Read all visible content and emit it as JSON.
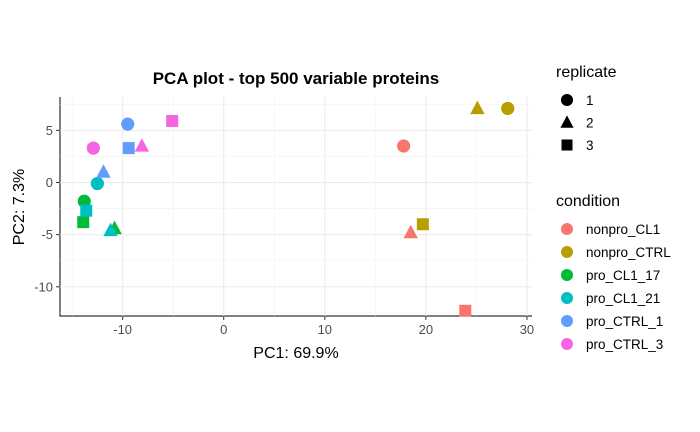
{
  "chart_data": {
    "type": "scatter",
    "title": "PCA plot - top 500 variable proteins",
    "xlabel": "PC1: 69.9%",
    "ylabel": "PC2: 7.3%",
    "xlim": [
      -16.2,
      30.5
    ],
    "ylim": [
      -12.8,
      8.2
    ],
    "xticks": [
      -10,
      0,
      10,
      20,
      30
    ],
    "yticks": [
      -10,
      -5,
      0,
      5
    ],
    "grid": true,
    "legend_position": "right",
    "legends": {
      "replicate": {
        "title": "replicate",
        "items": [
          {
            "label": "1",
            "shape": "circle"
          },
          {
            "label": "2",
            "shape": "triangle"
          },
          {
            "label": "3",
            "shape": "square"
          }
        ]
      },
      "condition": {
        "title": "condition",
        "items": [
          {
            "label": "nonpro_CL1",
            "color": "#F8766D"
          },
          {
            "label": "nonpro_CTRL",
            "color": "#B79F00"
          },
          {
            "label": "pro_CL1_17",
            "color": "#00BA38"
          },
          {
            "label": "pro_CL1_21",
            "color": "#00BFC4"
          },
          {
            "label": "pro_CTRL_1",
            "color": "#619CFF"
          },
          {
            "label": "pro_CTRL_3",
            "color": "#F564E3"
          }
        ]
      }
    },
    "points": [
      {
        "condition": "nonpro_CL1",
        "replicate": "1",
        "x": 17.8,
        "y": 3.5
      },
      {
        "condition": "nonpro_CL1",
        "replicate": "2",
        "x": 18.5,
        "y": -4.8
      },
      {
        "condition": "nonpro_CL1",
        "replicate": "3",
        "x": 23.9,
        "y": -12.3
      },
      {
        "condition": "nonpro_CTRL",
        "replicate": "1",
        "x": 28.1,
        "y": 7.1
      },
      {
        "condition": "nonpro_CTRL",
        "replicate": "2",
        "x": 25.1,
        "y": 7.1
      },
      {
        "condition": "nonpro_CTRL",
        "replicate": "3",
        "x": 19.7,
        "y": -4.0
      },
      {
        "condition": "pro_CL1_17",
        "replicate": "1",
        "x": -13.8,
        "y": -1.8
      },
      {
        "condition": "pro_CL1_17",
        "replicate": "2",
        "x": -10.8,
        "y": -4.4
      },
      {
        "condition": "pro_CL1_17",
        "replicate": "3",
        "x": -13.9,
        "y": -3.8
      },
      {
        "condition": "pro_CL1_21",
        "replicate": "1",
        "x": -12.5,
        "y": -0.1
      },
      {
        "condition": "pro_CL1_21",
        "replicate": "2",
        "x": -11.2,
        "y": -4.6
      },
      {
        "condition": "pro_CL1_21",
        "replicate": "3",
        "x": -13.6,
        "y": -2.7
      },
      {
        "condition": "pro_CTRL_1",
        "replicate": "1",
        "x": -9.5,
        "y": 5.6
      },
      {
        "condition": "pro_CTRL_1",
        "replicate": "2",
        "x": -11.9,
        "y": 1.0
      },
      {
        "condition": "pro_CTRL_1",
        "replicate": "3",
        "x": -9.4,
        "y": 3.3
      },
      {
        "condition": "pro_CTRL_3",
        "replicate": "1",
        "x": -12.9,
        "y": 3.3
      },
      {
        "condition": "pro_CTRL_3",
        "replicate": "2",
        "x": -8.1,
        "y": 3.5
      },
      {
        "condition": "pro_CTRL_3",
        "replicate": "3",
        "x": -5.1,
        "y": 5.9
      }
    ]
  }
}
